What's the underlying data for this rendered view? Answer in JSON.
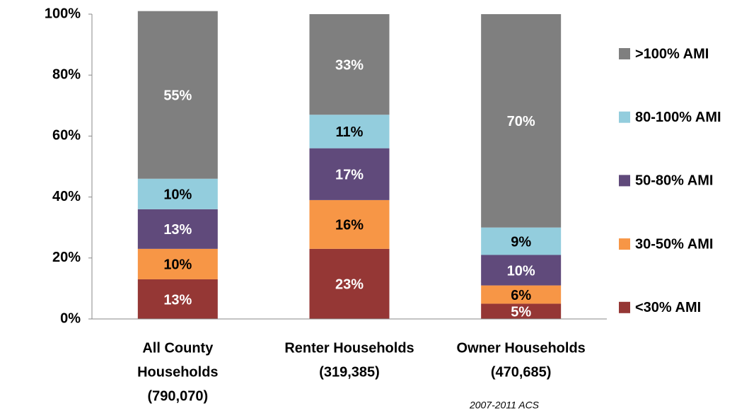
{
  "chart_data": {
    "type": "stacked_bar",
    "categories": [
      [
        "All County",
        "Households",
        "(790,070)"
      ],
      [
        "Renter Households",
        "(319,385)"
      ],
      [
        "Owner Households",
        "(470,685)"
      ]
    ],
    "series": [
      {
        "name": "<30% AMI",
        "color": "#953735",
        "label_color": "#ffffff",
        "values": [
          13,
          23,
          5
        ],
        "value_labels": [
          "13%",
          "23%",
          "5%"
        ]
      },
      {
        "name": "30-50% AMI",
        "color": "#f79646",
        "label_color": "#000000",
        "values": [
          10,
          16,
          6
        ],
        "value_labels": [
          "10%",
          "16%",
          "6%"
        ]
      },
      {
        "name": "50-80% AMI",
        "color": "#604a7b",
        "label_color": "#ffffff",
        "values": [
          13,
          17,
          10
        ],
        "value_labels": [
          "13%",
          "17%",
          "10%"
        ]
      },
      {
        "name": "80-100% AMI",
        "color": "#93cddd",
        "label_color": "#000000",
        "values": [
          10,
          11,
          9
        ],
        "value_labels": [
          "10%",
          "11%",
          "9%"
        ]
      },
      {
        "name": ">100% AMI",
        "color": "#7f7f7f",
        "label_color": "#ffffff",
        "values": [
          55,
          33,
          70
        ],
        "value_labels": [
          "55%",
          "33%",
          "70%"
        ]
      }
    ],
    "ylim": [
      0,
      100
    ],
    "yticks": [
      {
        "value": 0,
        "label": "0%"
      },
      {
        "value": 20,
        "label": "20%"
      },
      {
        "value": 40,
        "label": "40%"
      },
      {
        "value": 60,
        "label": "60%"
      },
      {
        "value": 80,
        "label": "80%"
      },
      {
        "value": 100,
        "label": "100%"
      }
    ],
    "grid": false,
    "legend": "right",
    "annotations": [
      "2007-2011 ACS"
    ]
  }
}
